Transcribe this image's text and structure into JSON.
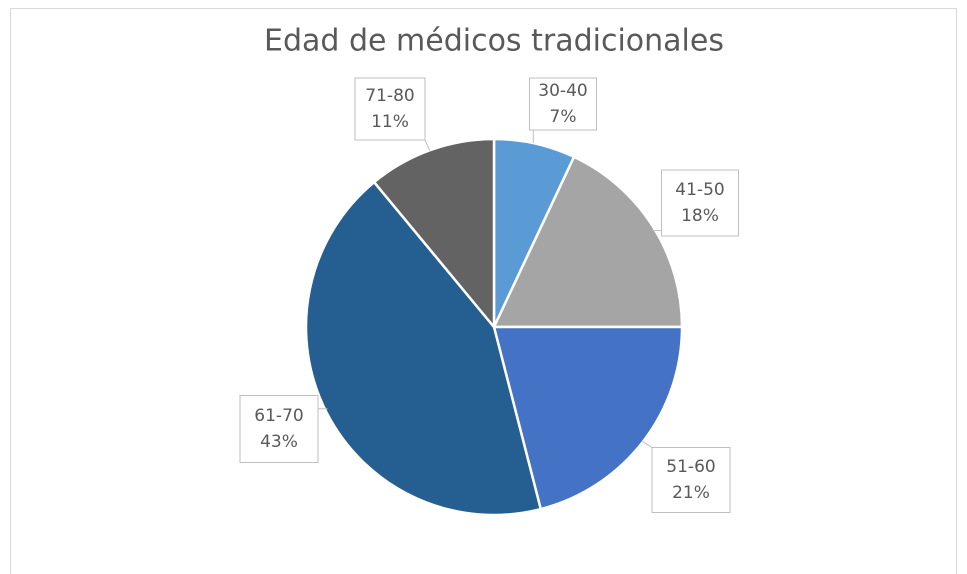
{
  "chart_data": {
    "type": "pie",
    "title": "Edad de médicos tradicionales",
    "categories": [
      "30-40",
      "41-50",
      "51-60",
      "61-70",
      "71-80"
    ],
    "values": [
      7,
      18,
      21,
      43,
      11
    ],
    "value_labels": [
      "7%",
      "18%",
      "21%",
      "43%",
      "11%"
    ],
    "colors": [
      "#5b9bd5",
      "#a5a5a5",
      "#4472c4",
      "#255e91",
      "#636363"
    ]
  }
}
